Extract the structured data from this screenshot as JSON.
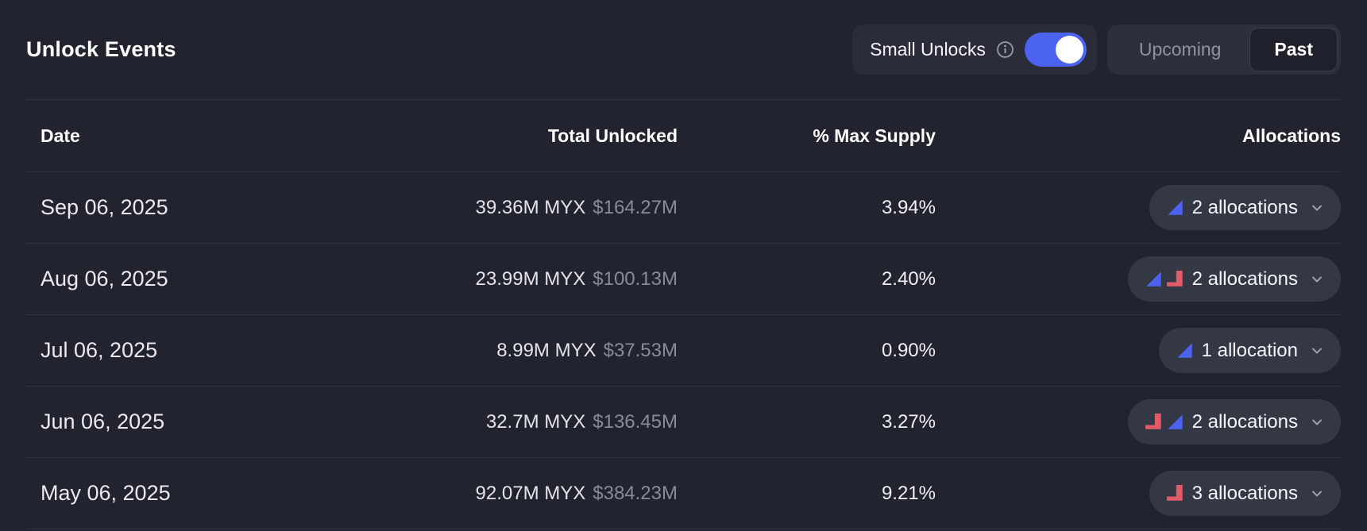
{
  "header": {
    "title": "Unlock Events"
  },
  "controls": {
    "small_unlocks_label": "Small Unlocks",
    "toggle_on": true,
    "tabs": [
      {
        "label": "Upcoming",
        "active": false
      },
      {
        "label": "Past",
        "active": true
      }
    ]
  },
  "table": {
    "columns": [
      "Date",
      "Total Unlocked",
      "% Max Supply",
      "Allocations"
    ],
    "rows": [
      {
        "date": "Sep 06, 2025",
        "amount": "39.36M MYX",
        "usd": "$164.27M",
        "pct": "3.94%",
        "allocations_label": "2 allocations",
        "icons": [
          "ramp-up"
        ]
      },
      {
        "date": "Aug 06, 2025",
        "amount": "23.99M MYX",
        "usd": "$100.13M",
        "pct": "2.40%",
        "allocations_label": "2 allocations",
        "icons": [
          "ramp-up",
          "cliff"
        ]
      },
      {
        "date": "Jul 06, 2025",
        "amount": "8.99M MYX",
        "usd": "$37.53M",
        "pct": "0.90%",
        "allocations_label": "1 allocation",
        "icons": [
          "ramp-up"
        ]
      },
      {
        "date": "Jun 06, 2025",
        "amount": "32.7M MYX",
        "usd": "$136.45M",
        "pct": "3.27%",
        "allocations_label": "2 allocations",
        "icons": [
          "cliff",
          "ramp-up"
        ]
      },
      {
        "date": "May 06, 2025",
        "amount": "92.07M MYX",
        "usd": "$384.23M",
        "pct": "9.21%",
        "allocations_label": "3 allocations",
        "icons": [
          "cliff"
        ]
      }
    ]
  },
  "colors": {
    "background": "#21242e",
    "panel": "#2a2d39",
    "pill": "#343744",
    "accent_blue": "#4b63ee",
    "accent_red": "#e25c68",
    "muted_text": "#868b9d"
  }
}
